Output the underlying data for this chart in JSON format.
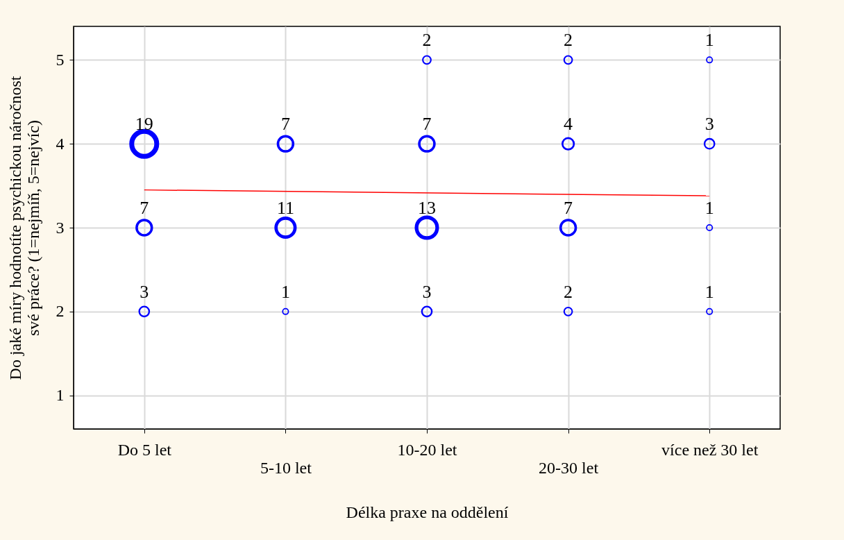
{
  "chart_data": {
    "type": "bubble",
    "xlabel": "Délka praxe na oddělení",
    "ylabel": "Do jaké míry hodnotíte psychickou náročnost své práce? (1=nejmíň, 5=nejvíc)",
    "categories": [
      "Do 5 let",
      "5-10 let",
      "10-20 let",
      "20-30 let",
      "více než 30 let"
    ],
    "series": [
      {
        "type": "bubble",
        "color": "#0000ff",
        "marker": "circle",
        "x": [
          "Do 5 let",
          "Do 5 let",
          "Do 5 let",
          "5-10 let",
          "5-10 let",
          "5-10 let",
          "10-20 let",
          "10-20 let",
          "10-20 let",
          "10-20 let",
          "20-30 let",
          "20-30 let",
          "20-30 let",
          "20-30 let",
          "více než 30 let",
          "více než 30 let",
          "více než 30 let",
          "více než 30 let"
        ],
        "values": [
          4,
          3,
          2,
          4,
          3,
          2,
          5,
          4,
          3,
          2,
          5,
          4,
          3,
          2,
          5,
          4,
          3,
          2
        ],
        "sizes": [
          19,
          7,
          3,
          7,
          11,
          1,
          2,
          7,
          13,
          3,
          2,
          4,
          7,
          2,
          1,
          3,
          1,
          1
        ],
        "value_labels": [
          "19",
          "7",
          "3",
          "7",
          "11",
          "1",
          "2",
          "7",
          "13",
          "3",
          "2",
          "4",
          "7",
          "2",
          "1",
          "3",
          "1",
          "1"
        ]
      },
      {
        "type": "line",
        "color": "#ff0000",
        "x": [
          "Do 5 let",
          "více než 30 let"
        ],
        "values": [
          3.45,
          3.38
        ]
      }
    ],
    "ylim": [
      0.6,
      5.4
    ],
    "yticks": [
      1,
      2,
      3,
      4,
      5
    ],
    "grid": true,
    "legend": false,
    "line_style": "solid"
  }
}
